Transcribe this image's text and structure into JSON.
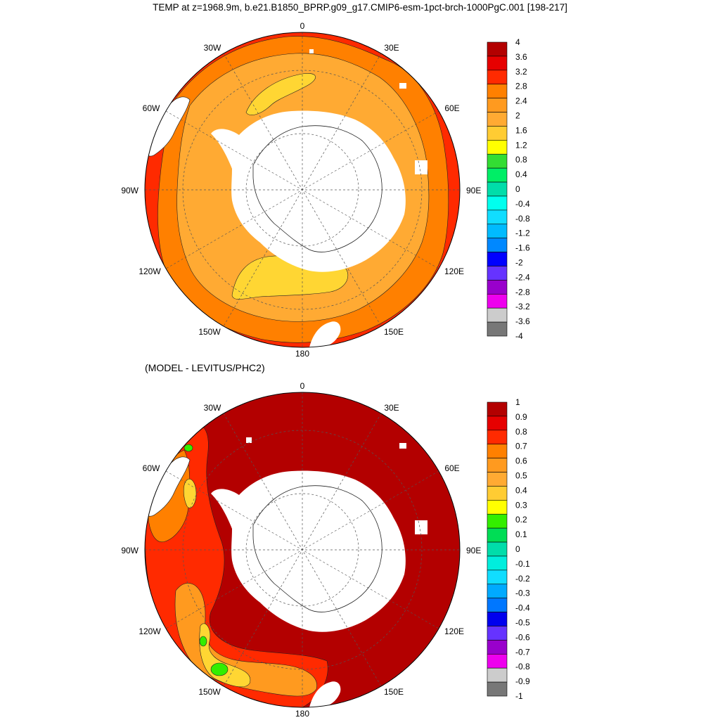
{
  "title": "TEMP at z=1968.9m, b.e21.B1850_BPRP.g09_g17.CMIP6-esm-1pct-brch-1000PgC.001 [198-217]",
  "subtitle": "(MODEL - LEVITUS/PHC2)",
  "lon_labels": {
    "top": "0",
    "bottom": "180",
    "left": "90W",
    "right": "90E",
    "l30": "30W",
    "r30": "30E",
    "l60": "60W",
    "r60": "60E",
    "l120": "120W",
    "r120": "120E",
    "l150": "150W",
    "r150": "150E"
  },
  "colorbar_top": {
    "labels": [
      "4",
      "3.6",
      "3.2",
      "2.8",
      "2.4",
      "2",
      "1.6",
      "1.2",
      "0.8",
      "0.4",
      "0",
      "-0.4",
      "-0.8",
      "-1.2",
      "-1.6",
      "-2",
      "-2.4",
      "-2.8",
      "-3.2",
      "-3.6",
      "-4"
    ],
    "colors": [
      "#b30000",
      "#e60000",
      "#ff2a00",
      "#ff8000",
      "#ff9a1f",
      "#ffaa33",
      "#ffcc33",
      "#ffff00",
      "#33dd33",
      "#00ee66",
      "#00ddaa",
      "#00ffee",
      "#11ddff",
      "#00bbff",
      "#0088ff",
      "#0000ff",
      "#6633ff",
      "#9900cc",
      "#ee00ee",
      "#cccccc",
      "#777777"
    ]
  },
  "colorbar_bottom": {
    "labels": [
      "1",
      "0.9",
      "0.8",
      "0.7",
      "0.6",
      "0.5",
      "0.4",
      "0.3",
      "0.2",
      "0.1",
      "0",
      "-0.1",
      "-0.2",
      "-0.3",
      "-0.4",
      "-0.5",
      "-0.6",
      "-0.7",
      "-0.8",
      "-0.9",
      "-1"
    ],
    "colors": [
      "#b30000",
      "#e60000",
      "#ff2a00",
      "#ff8000",
      "#ff9a1f",
      "#ffaa33",
      "#ffcc33",
      "#ffff00",
      "#33ee00",
      "#00dd55",
      "#00ddaa",
      "#00eedd",
      "#11ddff",
      "#00aaff",
      "#0077ff",
      "#0000ee",
      "#6633ff",
      "#9900cc",
      "#ee00ee",
      "#cccccc",
      "#777777"
    ]
  },
  "map_colors": {
    "ocean_dark_red": "#b30000",
    "red": "#ff2a00",
    "orange": "#ff8000",
    "light_orange": "#ffaa33",
    "yellow": "#ffd633",
    "land": "#ffffff",
    "green": "#33ee00"
  }
}
